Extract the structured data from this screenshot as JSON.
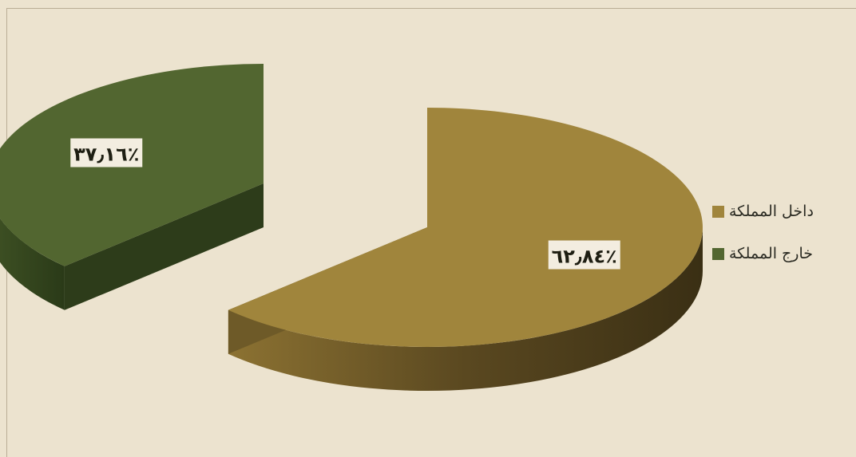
{
  "chart_data": {
    "type": "pie",
    "title": "",
    "slices": [
      {
        "category": "داخل المملكة",
        "value": 62.84,
        "value_label": "٦٢٫٨٤٪",
        "color": "#a0853c"
      },
      {
        "category": "خارج المملكة",
        "value": 37.16,
        "value_label": "٣٧٫١٦٪",
        "color": "#526630"
      }
    ],
    "legend_position": "right",
    "style": "3d-exploded"
  },
  "legend": {
    "items": [
      {
        "label": "داخل المملكة",
        "color": "#a0853c"
      },
      {
        "label": "خارج المملكة",
        "color": "#526630"
      }
    ]
  }
}
